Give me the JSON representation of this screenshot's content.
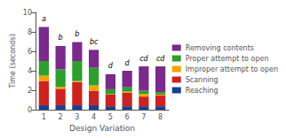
{
  "chart_data": {
    "type": "bar",
    "stacked": true,
    "xlabel": "Design Variation",
    "ylabel": "Time (seconds)",
    "categories": [
      "1",
      "2",
      "3",
      "4",
      "5",
      "6",
      "7",
      "8"
    ],
    "series": [
      {
        "name": "Reaching",
        "color": "#1a3f8f",
        "values": [
          0.45,
          0.45,
          0.45,
          0.45,
          0.35,
          0.35,
          0.35,
          0.35
        ]
      },
      {
        "name": "Scanning",
        "color": "#cc2222",
        "values": [
          2.5,
          1.7,
          2.4,
          1.5,
          1.2,
          1.4,
          1.0,
          1.1
        ]
      },
      {
        "name": "Improper attempt to open",
        "color": "#f0a500",
        "values": [
          0.55,
          0.2,
          0.1,
          0.55,
          0.05,
          0.1,
          0.25,
          0.1
        ]
      },
      {
        "name": "Proper attempt to open",
        "color": "#2e9e2e",
        "values": [
          1.5,
          1.8,
          2.05,
          1.8,
          0.5,
          0.45,
          0.35,
          0.25
        ]
      },
      {
        "name": "Removing contents",
        "color": "#7a2a8a",
        "values": [
          3.5,
          2.4,
          1.95,
          1.85,
          1.55,
          1.7,
          2.5,
          2.65
        ]
      }
    ],
    "annotations": [
      "a",
      "b",
      "b",
      "bc",
      "d",
      "d",
      "cd",
      "cd"
    ],
    "ylim": [
      0,
      10
    ],
    "yticks": [
      0,
      2,
      4,
      6,
      8,
      10
    ],
    "grid": false,
    "legend": "right"
  }
}
